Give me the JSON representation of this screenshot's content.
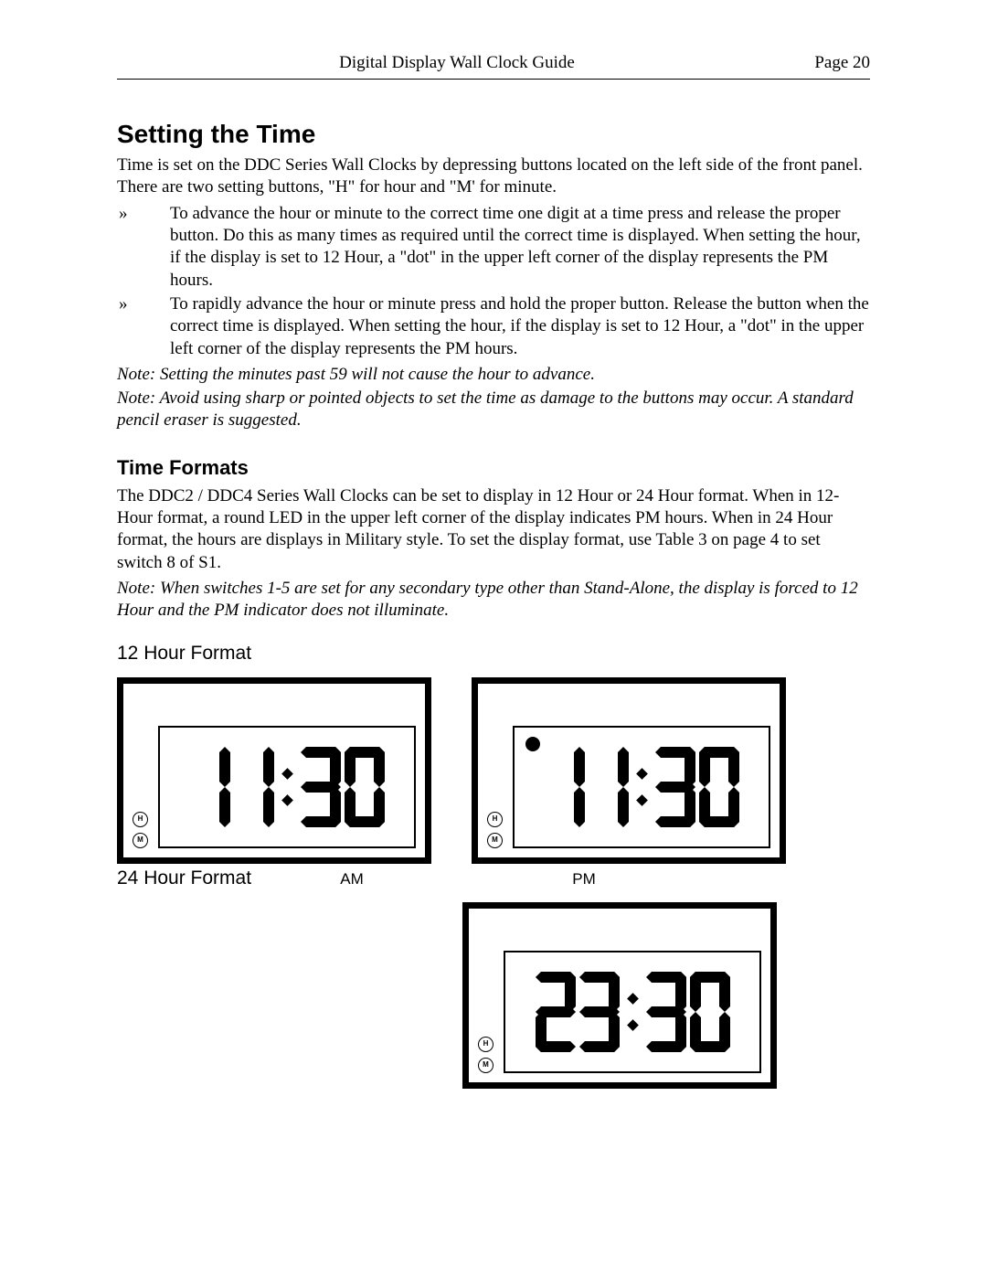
{
  "header": {
    "title": "Digital Display Wall Clock Guide",
    "page": "Page 20"
  },
  "section": {
    "title": "Setting the Time",
    "intro": "Time is set on the DDC Series Wall Clocks by depressing buttons located on the left side of the front panel. There are two setting buttons, \"H\" for hour and \"M' for minute.",
    "bullets": [
      "To advance the hour or minute to the correct time one digit at a time press and release the proper button. Do this as many times as required until the correct time is displayed. When setting the hour, if the display is set to 12 Hour, a \"dot\" in the upper left corner of the display represents the PM hours.",
      "To rapidly advance the hour or minute press and hold the proper button. Release the button when the correct time is displayed. When setting the hour, if the display is set to 12 Hour, a \"dot\" in the upper left corner of the display represents the PM hours."
    ],
    "note1": "Note: Setting the minutes past 59 will not cause the hour to advance.",
    "note2": "Note: Avoid using sharp or pointed objects to set the time as damage to the buttons may occur. A standard pencil eraser is suggested."
  },
  "formats": {
    "title": "Time Formats",
    "intro": "The DDC2 / DDC4 Series Wall Clocks can be set to display in 12 Hour or 24 Hour format. When in 12-Hour format, a round LED in the upper left corner of the display indicates PM hours. When in 24 Hour format, the hours are displays in Military style. To set the display format, use Table 3 on page 4 to set switch 8 of S1.",
    "note": "Note: When switches 1-5 are set for any secondary type other than Stand-Alone, the display is forced to 12 Hour and the PM indicator does not illuminate.",
    "label12": "12 Hour Format",
    "label24": "24 Hour Format",
    "am": "AM",
    "pm": "PM",
    "btn_h": "H",
    "btn_m": "M"
  },
  "clocks": {
    "am": {
      "d1": "1",
      "d2": "1",
      "d3": "3",
      "d4": "0",
      "pm_dot": false
    },
    "pm": {
      "d1": "1",
      "d2": "1",
      "d3": "3",
      "d4": "0",
      "pm_dot": true
    },
    "mil": {
      "d1": "2",
      "d2": "3",
      "d3": "3",
      "d4": "0",
      "pm_dot": false
    }
  },
  "style": {
    "digit_color": "#000000",
    "stroke_width": 9
  }
}
